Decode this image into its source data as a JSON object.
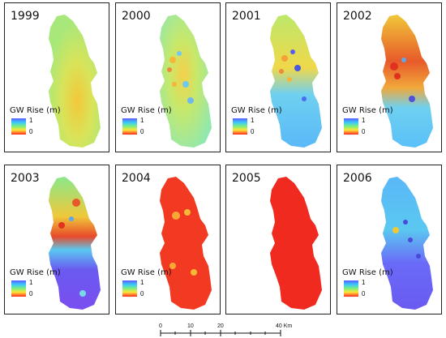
{
  "legend": {
    "title": "GW Rise (m)",
    "max_label": "1",
    "min_label": "0",
    "colors": [
      "#5b5cff",
      "#39c8ff",
      "#7df07a",
      "#ffe63a",
      "#ff2a1f"
    ]
  },
  "panels": [
    {
      "year": "1999",
      "base_color": "#b9e866",
      "hot_color": "#f3d23a"
    },
    {
      "year": "2000",
      "base_color": "#9fe89a",
      "hot_color": "#f7b53a"
    },
    {
      "year": "2001",
      "base_color": "#6fd0f0",
      "hot_color": "#f5c83a"
    },
    {
      "year": "2002",
      "base_color": "#e8a838",
      "hot_color": "#e83a2a"
    },
    {
      "year": "2003",
      "base_color": "#7a57f0",
      "hot_color": "#e84a2a"
    },
    {
      "year": "2004",
      "base_color": "#f23a22",
      "hot_color": "#f7c83a"
    },
    {
      "year": "2005",
      "base_color": "#f02a1f",
      "hot_color": "#f02a1f"
    },
    {
      "year": "2006",
      "base_color": "#6a6af8",
      "hot_color": "#5ab8f8"
    }
  ],
  "scalebar": {
    "ticks": [
      "0",
      "10",
      "20",
      "40 Km"
    ]
  }
}
